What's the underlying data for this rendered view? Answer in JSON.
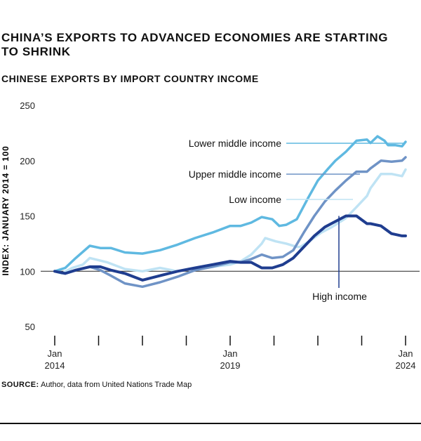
{
  "title": "CHINA’S EXPORTS TO ADVANCED ECONOMIES ARE STARTING TO SHRINK",
  "subtitle": "CHINESE EXPORTS BY IMPORT COUNTRY INCOME",
  "source": {
    "label": "SOURCE:",
    "text": " Author, data from United Nations Trade Map"
  },
  "chart_data": {
    "type": "line",
    "ylabel": "INDEX: JANUARY 2014 = 100",
    "ylim": [
      50,
      250
    ],
    "yticks": [
      50,
      100,
      150,
      200,
      250
    ],
    "xlim": [
      2014,
      2024
    ],
    "xtick_labels": [
      {
        "x": 2014,
        "line1": "Jan",
        "line2": "2014"
      },
      {
        "x": 2019,
        "line1": "Jan",
        "line2": "2019"
      },
      {
        "x": 2024,
        "line1": "Jan",
        "line2": "2024"
      }
    ],
    "xtick_marks": [
      2014,
      2015.25,
      2016.5,
      2017.75,
      2019,
      2020.25,
      2021.5,
      2022.75,
      2024
    ],
    "reference_line": 100,
    "series": [
      {
        "name": "Low income",
        "color": "#bfe3f4",
        "x": [
          2014,
          2014.2,
          2014.5,
          2014.8,
          2015,
          2015.5,
          2016,
          2016.5,
          2017,
          2017.5,
          2018,
          2018.5,
          2019,
          2019.3,
          2019.6,
          2019.9,
          2020,
          2020.3,
          2020.6,
          2020.9,
          2021,
          2021.3,
          2021.6,
          2021.9,
          2022,
          2022.3,
          2022.6,
          2022.9,
          2023,
          2023.3,
          2023.6,
          2023.9,
          2024
        ],
        "y": [
          100,
          98,
          103,
          106,
          112,
          108,
          102,
          100,
          103,
          100,
          103,
          104,
          106,
          109,
          115,
          125,
          130,
          127,
          125,
          122,
          122,
          128,
          135,
          140,
          142,
          148,
          158,
          168,
          175,
          188,
          188,
          186,
          192
        ]
      },
      {
        "name": "Lower middle income",
        "color": "#5fb9e1",
        "x": [
          2014,
          2014.3,
          2014.6,
          2015,
          2015.3,
          2015.6,
          2016,
          2016.5,
          2017,
          2017.5,
          2018,
          2018.5,
          2019,
          2019.3,
          2019.6,
          2019.9,
          2020.2,
          2020.4,
          2020.6,
          2020.9,
          2021.2,
          2021.5,
          2021.8,
          2022,
          2022.3,
          2022.6,
          2022.9,
          2023,
          2023.2,
          2023.4,
          2023.5,
          2023.7,
          2023.9,
          2024
        ],
        "y": [
          100,
          103,
          112,
          123,
          121,
          121,
          117,
          116,
          119,
          124,
          130,
          135,
          141,
          141,
          144,
          149,
          147,
          141,
          142,
          147,
          165,
          182,
          193,
          200,
          208,
          218,
          219,
          216,
          222,
          218,
          214,
          214,
          213,
          217
        ]
      },
      {
        "name": "Upper middle income",
        "color": "#6f93c6",
        "x": [
          2014,
          2014.3,
          2014.6,
          2015,
          2015.3,
          2015.6,
          2016,
          2016.5,
          2017,
          2017.5,
          2018,
          2018.5,
          2019,
          2019.3,
          2019.6,
          2019.9,
          2020.2,
          2020.5,
          2020.8,
          2021.1,
          2021.4,
          2021.7,
          2022,
          2022.3,
          2022.6,
          2022.9,
          2023,
          2023.3,
          2023.6,
          2023.9,
          2024
        ],
        "y": [
          100,
          98,
          101,
          104,
          101,
          96,
          89,
          86,
          90,
          95,
          101,
          104,
          108,
          108,
          111,
          115,
          112,
          113,
          119,
          135,
          150,
          163,
          173,
          182,
          190,
          190,
          193,
          200,
          199,
          200,
          203
        ]
      },
      {
        "name": "High income",
        "color": "#1f3d8f",
        "x": [
          2014,
          2014.3,
          2014.6,
          2015,
          2015.3,
          2015.6,
          2016,
          2016.5,
          2017,
          2017.5,
          2018,
          2018.5,
          2019,
          2019.3,
          2019.6,
          2019.9,
          2020.2,
          2020.5,
          2020.8,
          2021.1,
          2021.4,
          2021.7,
          2022,
          2022.3,
          2022.6,
          2022.9,
          2023,
          2023.3,
          2023.6,
          2023.9,
          2024
        ],
        "y": [
          100,
          98,
          101,
          104,
          104,
          101,
          98,
          92,
          96,
          100,
          103,
          106,
          109,
          108,
          108,
          103,
          103,
          106,
          112,
          122,
          132,
          140,
          145,
          150,
          150,
          143,
          143,
          141,
          134,
          132,
          132
        ]
      }
    ],
    "annotations": [
      {
        "series": "Lower middle income",
        "text": "Lower middle income",
        "x": 2024,
        "y": 217
      },
      {
        "series": "Upper middle income",
        "text": "Upper middle income",
        "x": 2022.7,
        "y": 188
      },
      {
        "series": "Low income",
        "text": "Low income",
        "x": 2022.5,
        "y": 160
      },
      {
        "series": "High income",
        "text": "High income",
        "x": 2022.1,
        "y": 150
      }
    ],
    "grid": false
  }
}
